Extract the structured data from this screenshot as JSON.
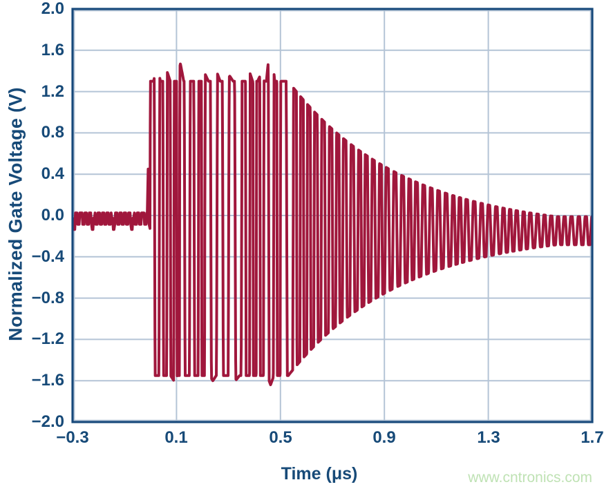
{
  "watermark": {
    "text": "www.cntronics.com",
    "color": "#BFE2B4"
  },
  "chart_data": {
    "type": "line",
    "title": "",
    "xlabel": "Time (μs)",
    "ylabel": "Normalized Gate Voltage (V)",
    "xlim": [
      -0.3,
      1.7
    ],
    "ylim": [
      -2.0,
      2.0
    ],
    "grid": true,
    "legend": null,
    "xticks": {
      "values": [
        -0.3,
        0.1,
        0.5,
        0.9,
        1.3,
        1.7
      ],
      "labels": [
        "−0.3",
        "0.1",
        "0.5",
        "0.9",
        "1.3",
        "1.7"
      ]
    },
    "yticks": {
      "values": [
        2.0,
        1.6,
        1.2,
        0.8,
        0.4,
        0.0,
        -0.4,
        -0.8,
        -1.2,
        -1.6,
        -2.0
      ],
      "labels": [
        "2.0",
        "1.6",
        "1.2",
        "0.8",
        "0.4",
        "0.0",
        "−0.4",
        "−0.8",
        "−1.2",
        "−1.6",
        "−2.0"
      ]
    },
    "colors": {
      "trace": "#A0173C",
      "axis_text": "#174A78",
      "frame": "#17497B",
      "grid": "#B4C4D6",
      "background": "#FFFFFF"
    },
    "series": [
      {
        "name": "normalized gate voltage",
        "description": "Flat near 0 V until ~0 μs, clipped burst oscillation between +1.3 V and −1.55 V until ~0.53 μs (max spike +1.71 V at 0.46 μs), then exponential ring-down settling to ~±0.14 V about −0.15 V by 1.7 μs"
      }
    ],
    "upper_envelope": [
      [
        -0.3,
        0.02
      ],
      [
        0.0,
        0.02
      ],
      [
        0.01,
        1.3
      ],
      [
        0.115,
        1.47
      ],
      [
        0.46,
        1.71
      ],
      [
        0.53,
        1.3
      ],
      [
        0.7,
        0.87
      ],
      [
        0.9,
        0.48
      ],
      [
        1.1,
        0.27
      ],
      [
        1.3,
        0.1
      ],
      [
        1.5,
        0.0
      ],
      [
        1.7,
        -0.01
      ]
    ],
    "lower_envelope": [
      [
        -0.3,
        -0.1
      ],
      [
        0.0,
        -0.1
      ],
      [
        0.01,
        -1.55
      ],
      [
        0.46,
        -1.64
      ],
      [
        0.53,
        -1.55
      ],
      [
        0.7,
        -1.17
      ],
      [
        0.9,
        -0.78
      ],
      [
        1.1,
        -0.45
      ],
      [
        1.3,
        -0.32
      ],
      [
        1.5,
        -0.29
      ],
      [
        1.7,
        -0.28
      ]
    ],
    "waveform": {
      "seed": 11,
      "baseline": {
        "t_start": -0.3,
        "t_end": -0.013,
        "center": -0.03,
        "ripple": 0.055,
        "ripple_period": 0.017,
        "notch_period": 0.075,
        "notch_width": 0.14,
        "notch_depth": 0.05
      },
      "pre_spike": {
        "t": -0.009,
        "v": 0.45
      },
      "burst": {
        "t_start": -0.002,
        "t_end": 0.53,
        "top": 1.3,
        "bottom": -1.55,
        "period": 0.036,
        "period_jitter": 0.42,
        "gain": 4.0
      },
      "decay": {
        "center": -0.15,
        "amp0": 1.45,
        "tau": 0.44,
        "amp_floor": 0.138,
        "top_k": 1.0,
        "bottom_k": 0.966,
        "period": 0.0272,
        "period_jitter": 0.1,
        "gain_min": 1.35,
        "gain0": 2.65,
        "gain_tau": 0.2
      },
      "spikes_top": [
        {
          "t": 0.025,
          "boost": 0.17
        },
        {
          "t": 0.063,
          "boost": 0.1
        },
        {
          "t": 0.115,
          "boost": 0.17
        },
        {
          "t": 0.21,
          "boost": 0.07
        },
        {
          "t": 0.255,
          "boost": 0.09
        },
        {
          "t": 0.305,
          "boost": 0.05
        },
        {
          "t": 0.38,
          "boost": 0.1
        },
        {
          "t": 0.425,
          "boost": 0.07
        },
        {
          "t": 0.462,
          "boost": 0.41,
          "w": 0.016
        }
      ],
      "spikes_bottom": [
        {
          "t": 0.09,
          "boost": 0.05
        },
        {
          "t": 0.24,
          "boost": 0.05
        },
        {
          "t": 0.33,
          "boost": 0.04
        },
        {
          "t": 0.462,
          "boost": 0.09
        }
      ]
    }
  }
}
